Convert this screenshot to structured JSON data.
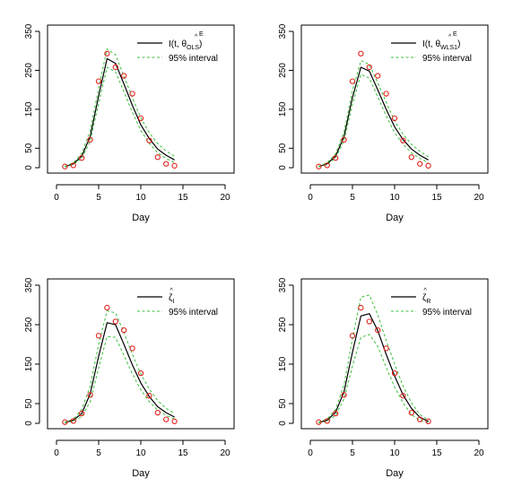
{
  "chart_data": [
    {
      "type": "line",
      "xlabel": "Day",
      "xlim": [
        0,
        20
      ],
      "ylim": [
        0,
        350
      ],
      "xticks": [
        0,
        5,
        10,
        15,
        20
      ],
      "yticks": [
        0,
        50,
        150,
        250,
        350
      ],
      "grid": false,
      "legend_position": "top-right",
      "legend": [
        {
          "text": "I(t, θ",
          "hat": "^",
          "sup": "E",
          "sub": "OLS",
          "close": ")",
          "style": "solid",
          "color": "#000000"
        },
        {
          "text": "95% interval",
          "style": "dashed",
          "color": "#3cbf3c"
        }
      ],
      "series": [
        {
          "kind": "fit",
          "color": "#000000",
          "x": [
            1,
            2,
            3,
            4,
            5,
            6,
            7,
            8,
            9,
            10,
            11,
            12,
            13,
            14
          ],
          "y": [
            3,
            10,
            30,
            80,
            185,
            280,
            268,
            215,
            160,
            110,
            75,
            48,
            32,
            20
          ]
        },
        {
          "kind": "upper",
          "color": "#3cbf3c",
          "x": [
            1,
            2,
            3,
            4,
            5,
            6,
            7,
            8,
            9,
            10,
            11,
            12,
            13,
            14
          ],
          "y": [
            4,
            13,
            37,
            95,
            205,
            305,
            290,
            235,
            180,
            128,
            90,
            62,
            43,
            30
          ]
        },
        {
          "kind": "lower",
          "color": "#3cbf3c",
          "x": [
            1,
            2,
            3,
            4,
            5,
            6,
            7,
            8,
            9,
            10,
            11,
            12,
            13,
            14
          ],
          "y": [
            2,
            8,
            24,
            68,
            165,
            258,
            246,
            195,
            142,
            95,
            63,
            38,
            24,
            13
          ]
        },
        {
          "kind": "observed",
          "color": "#e0211b",
          "x": [
            1,
            2,
            3,
            4,
            5,
            6,
            7,
            8,
            9,
            10,
            11,
            12,
            13,
            14
          ],
          "y": [
            3,
            6,
            25,
            72,
            222,
            293,
            258,
            236,
            190,
            127,
            70,
            27,
            10,
            5
          ]
        }
      ]
    },
    {
      "type": "line",
      "xlabel": "Day",
      "xlim": [
        0,
        20
      ],
      "ylim": [
        0,
        350
      ],
      "xticks": [
        0,
        5,
        10,
        15,
        20
      ],
      "yticks": [
        0,
        50,
        150,
        250,
        350
      ],
      "grid": false,
      "legend_position": "top-right",
      "legend": [
        {
          "text": "I(t, θ",
          "hat": "^",
          "sup": "E",
          "sub": "WLS1",
          "close": ")",
          "style": "solid",
          "color": "#000000"
        },
        {
          "text": "95% interval",
          "style": "dashed",
          "color": "#3cbf3c"
        }
      ],
      "series": [
        {
          "kind": "fit",
          "color": "#000000",
          "x": [
            1,
            2,
            3,
            4,
            5,
            6,
            7,
            8,
            9,
            10,
            11,
            12,
            13,
            14
          ],
          "y": [
            3,
            10,
            30,
            80,
            180,
            258,
            248,
            200,
            150,
            105,
            72,
            48,
            32,
            20
          ]
        },
        {
          "kind": "upper",
          "color": "#3cbf3c",
          "x": [
            1,
            2,
            3,
            4,
            5,
            6,
            7,
            8,
            9,
            10,
            11,
            12,
            13,
            14
          ],
          "y": [
            4,
            13,
            36,
            92,
            198,
            275,
            265,
            218,
            168,
            120,
            86,
            60,
            42,
            28
          ]
        },
        {
          "kind": "lower",
          "color": "#3cbf3c",
          "x": [
            1,
            2,
            3,
            4,
            5,
            6,
            7,
            8,
            9,
            10,
            11,
            12,
            13,
            14
          ],
          "y": [
            2,
            8,
            25,
            70,
            162,
            240,
            230,
            182,
            133,
            90,
            60,
            38,
            24,
            13
          ]
        },
        {
          "kind": "observed",
          "color": "#e0211b",
          "x": [
            1,
            2,
            3,
            4,
            5,
            6,
            7,
            8,
            9,
            10,
            11,
            12,
            13,
            14
          ],
          "y": [
            3,
            6,
            25,
            72,
            222,
            293,
            258,
            236,
            190,
            127,
            70,
            27,
            10,
            5
          ]
        }
      ]
    },
    {
      "type": "line",
      "xlabel": "Day",
      "xlim": [
        0,
        20
      ],
      "ylim": [
        0,
        350
      ],
      "xticks": [
        0,
        5,
        10,
        15,
        20
      ],
      "yticks": [
        0,
        50,
        150,
        250,
        350
      ],
      "grid": false,
      "legend_position": "top-right",
      "legend": [
        {
          "text": "ζ",
          "hat": "^",
          "sup": "",
          "sub": "I",
          "close": "",
          "style": "solid",
          "color": "#000000"
        },
        {
          "text": "95% interval",
          "style": "dashed",
          "color": "#3cbf3c"
        }
      ],
      "series": [
        {
          "kind": "fit",
          "color": "#000000",
          "x": [
            1,
            2,
            3,
            4,
            5,
            6,
            7,
            8,
            9,
            10,
            11,
            12,
            13,
            14
          ],
          "y": [
            2,
            8,
            25,
            75,
            170,
            255,
            250,
            200,
            148,
            102,
            68,
            42,
            27,
            16
          ]
        },
        {
          "kind": "upper",
          "color": "#3cbf3c",
          "x": [
            1,
            2,
            3,
            4,
            5,
            6,
            7,
            8,
            9,
            10,
            11,
            12,
            13,
            14
          ],
          "y": [
            3,
            11,
            35,
            95,
            200,
            285,
            280,
            230,
            175,
            125,
            87,
            58,
            38,
            25
          ]
        },
        {
          "kind": "lower",
          "color": "#3cbf3c",
          "x": [
            1,
            2,
            3,
            4,
            5,
            6,
            7,
            8,
            9,
            10,
            11,
            12,
            13,
            14
          ],
          "y": [
            1,
            5,
            17,
            55,
            140,
            220,
            218,
            172,
            125,
            85,
            55,
            33,
            20,
            11
          ]
        },
        {
          "kind": "observed",
          "color": "#e0211b",
          "x": [
            1,
            2,
            3,
            4,
            5,
            6,
            7,
            8,
            9,
            10,
            11,
            12,
            13,
            14
          ],
          "y": [
            3,
            6,
            25,
            72,
            222,
            293,
            258,
            236,
            190,
            127,
            70,
            27,
            10,
            5
          ]
        }
      ]
    },
    {
      "type": "line",
      "xlabel": "Day",
      "xlim": [
        0,
        20
      ],
      "ylim": [
        0,
        350
      ],
      "xticks": [
        0,
        5,
        10,
        15,
        20
      ],
      "yticks": [
        0,
        50,
        150,
        250,
        350
      ],
      "grid": false,
      "legend_position": "top-right",
      "legend": [
        {
          "text": "ζ",
          "hat": "^",
          "sup": "",
          "sub": "R",
          "close": "",
          "style": "solid",
          "color": "#000000"
        },
        {
          "text": "95% interval",
          "style": "dashed",
          "color": "#3cbf3c"
        }
      ],
      "series": [
        {
          "kind": "fit",
          "color": "#000000",
          "x": [
            1,
            2,
            3,
            4,
            5,
            6,
            7,
            8,
            9,
            10,
            11,
            12,
            13,
            14
          ],
          "y": [
            2,
            8,
            28,
            80,
            180,
            272,
            278,
            235,
            175,
            120,
            72,
            38,
            15,
            5
          ]
        },
        {
          "kind": "upper",
          "color": "#3cbf3c",
          "x": [
            1,
            2,
            3,
            4,
            5,
            6,
            7,
            8,
            9,
            10,
            11,
            12,
            13,
            14
          ],
          "y": [
            3,
            11,
            35,
            98,
            215,
            320,
            325,
            275,
            210,
            150,
            95,
            52,
            22,
            8
          ]
        },
        {
          "kind": "lower",
          "color": "#3cbf3c",
          "x": [
            1,
            2,
            3,
            4,
            5,
            6,
            7,
            8,
            9,
            10,
            11,
            12,
            13,
            14
          ],
          "y": [
            1,
            5,
            20,
            62,
            145,
            218,
            225,
            195,
            142,
            92,
            52,
            22,
            7,
            2
          ]
        },
        {
          "kind": "observed",
          "color": "#e0211b",
          "x": [
            1,
            2,
            3,
            4,
            5,
            6,
            7,
            8,
            9,
            10,
            11,
            12,
            13,
            14
          ],
          "y": [
            3,
            6,
            25,
            72,
            222,
            293,
            258,
            236,
            190,
            127,
            70,
            27,
            10,
            5
          ]
        }
      ]
    }
  ]
}
